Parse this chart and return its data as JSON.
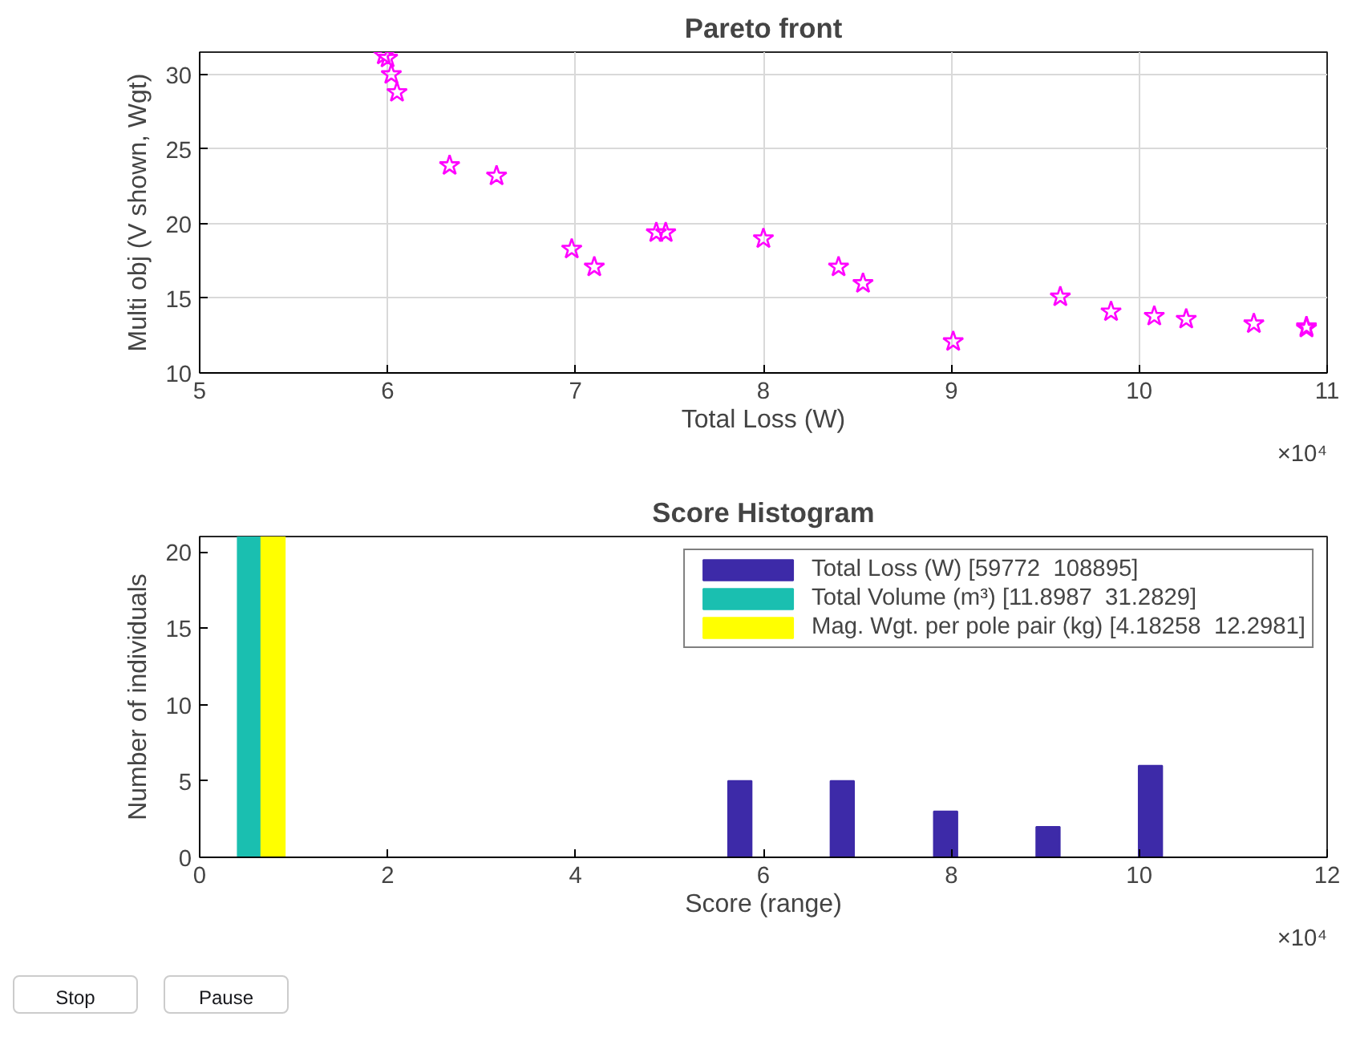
{
  "chart_data": [
    {
      "type": "scatter",
      "title": "Pareto front",
      "xlabel": "Total Loss (W)",
      "ylabel": "Multi obj (V shown, Wgt)",
      "x": [
        5.98,
        6.0,
        6.02,
        6.05,
        6.33,
        6.58,
        6.98,
        7.1,
        7.43,
        7.48,
        8.0,
        8.4,
        8.53,
        9.01,
        9.58,
        9.85,
        10.08,
        10.25,
        10.61,
        10.89,
        10.89
      ],
      "series": [
        {
          "color": "#ff00ff",
          "values": [
            31.3,
            31.1,
            30.0,
            28.8,
            23.9,
            23.2,
            18.3,
            17.1,
            19.4,
            19.4,
            19.0,
            17.1,
            16.0,
            12.1,
            15.1,
            14.1,
            13.8,
            13.6,
            13.3,
            13.1,
            13.0
          ]
        }
      ],
      "marker": "star",
      "grid": true,
      "xlim": [
        5,
        11
      ],
      "ylim": [
        10,
        31.5
      ],
      "xticks": [
        5,
        6,
        7,
        8,
        9,
        10,
        11
      ],
      "yticks": [
        10,
        15,
        20,
        25,
        30
      ],
      "annotations": [
        "×10⁴"
      ]
    },
    {
      "type": "bar",
      "title": "Score Histogram",
      "xlabel": "Score (range)",
      "ylabel": "Number of individuals",
      "x": [
        0.53,
        1.62,
        2.72,
        3.81,
        4.91,
        6.0,
        7.09,
        8.19,
        9.28,
        10.37
      ],
      "series": [
        {
          "name": "Total Loss (W) [59772  108895]",
          "color": "#3d2aa8",
          "values": [
            0,
            0,
            0,
            0,
            0,
            5,
            5,
            3,
            2,
            6
          ]
        },
        {
          "name": "Total Volume (m³) [11.8987  31.2829]",
          "color": "#1abfb0",
          "values": [
            21,
            0,
            0,
            0,
            0,
            0,
            0,
            0,
            0,
            0
          ]
        },
        {
          "name": "Mag. Wgt. per pole pair (kg) [4.18258  12.2981]",
          "color": "#ffff00",
          "values": [
            21,
            0,
            0,
            0,
            0,
            0,
            0,
            0,
            0,
            0
          ]
        }
      ],
      "legend": "top right",
      "grid": false,
      "xlim": [
        0,
        12
      ],
      "ylim": [
        0,
        21
      ],
      "xticks": [
        0,
        2,
        4,
        6,
        8,
        10,
        12
      ],
      "yticks": [
        0,
        5,
        10,
        15,
        20
      ],
      "annotations": [
        "×10⁴",
        "Stop",
        "Pause"
      ]
    }
  ]
}
